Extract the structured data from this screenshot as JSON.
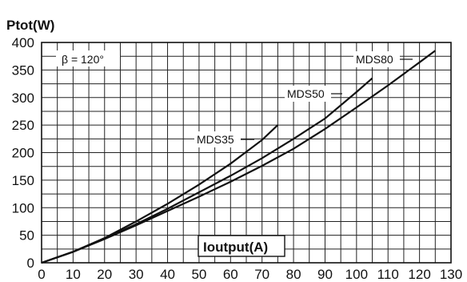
{
  "chart_data": {
    "type": "line",
    "title": "",
    "ylabel": "Ptot(W)",
    "xlabel": "Ioutput(A)",
    "xlim": [
      0,
      130
    ],
    "ylim": [
      0,
      400
    ],
    "xticks": [
      0,
      10,
      20,
      30,
      40,
      50,
      60,
      70,
      80,
      90,
      100,
      110,
      120,
      130
    ],
    "yticks": [
      0,
      50,
      100,
      150,
      200,
      250,
      300,
      350,
      400
    ],
    "grid": true,
    "annotation": "β = 120°",
    "series": [
      {
        "name": "MDS35",
        "x": [
          0,
          10,
          20,
          30,
          40,
          50,
          60,
          70,
          75
        ],
        "y": [
          0,
          20,
          45,
          75,
          107,
          142,
          180,
          223,
          250
        ]
      },
      {
        "name": "MDS50",
        "x": [
          0,
          10,
          20,
          30,
          40,
          50,
          60,
          70,
          80,
          90,
          100,
          105
        ],
        "y": [
          0,
          20,
          44,
          70,
          98,
          128,
          158,
          190,
          225,
          262,
          310,
          335
        ]
      },
      {
        "name": "MDS80",
        "x": [
          0,
          10,
          20,
          30,
          40,
          50,
          60,
          70,
          80,
          90,
          100,
          110,
          120,
          125
        ],
        "y": [
          0,
          20,
          43,
          68,
          94,
          120,
          147,
          176,
          207,
          243,
          282,
          322,
          364,
          385
        ]
      }
    ]
  }
}
